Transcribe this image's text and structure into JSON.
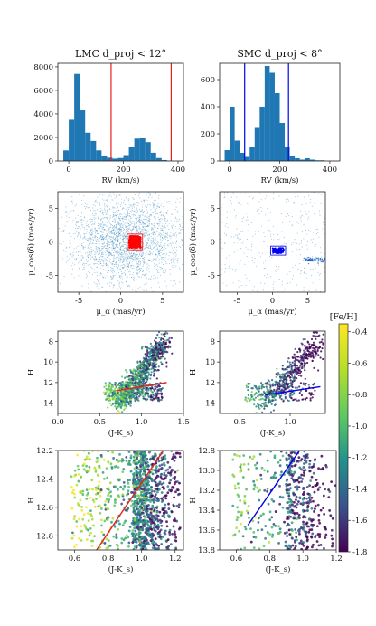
{
  "figure": {
    "colorbar": {
      "title": "[Fe/H]",
      "ticks": [
        "-0.4",
        "-0.6",
        "-0.8",
        "-1.0",
        "-1.2",
        "-1.4",
        "-1.6",
        "-1.8"
      ],
      "range": [
        -1.8,
        -0.35
      ],
      "colors": [
        "#440154",
        "#3b528b",
        "#21918c",
        "#5ec962",
        "#b5de2b",
        "#fde725"
      ]
    }
  },
  "chart_data": [
    {
      "id": "lmc-rv",
      "type": "bar",
      "title": "LMC d_proj < 12°",
      "xlabel": "RV (km/s)",
      "ylabel": "",
      "xlim": [
        -40,
        420
      ],
      "ylim": [
        0,
        8300
      ],
      "xticks": [
        0,
        200,
        400
      ],
      "yticks": [
        0,
        2000,
        4000,
        6000,
        8000
      ],
      "bin_width": 20,
      "bins": [
        -20,
        0,
        20,
        40,
        60,
        80,
        100,
        120,
        140,
        160,
        180,
        200,
        220,
        240,
        260,
        280,
        300,
        320,
        340,
        360
      ],
      "values": [
        900,
        3500,
        7400,
        4300,
        2400,
        1700,
        900,
        450,
        280,
        200,
        250,
        500,
        1200,
        1900,
        2000,
        1600,
        700,
        250,
        80,
        30
      ],
      "bar_color": "#1f77b4",
      "vlines": [
        155,
        375
      ],
      "vline_color": "#e8211d"
    },
    {
      "id": "smc-rv",
      "type": "bar",
      "title": "SMC d_proj < 8°",
      "xlabel": "RV (km/s)",
      "ylabel": "",
      "xlim": [
        -40,
        440
      ],
      "ylim": [
        0,
        720
      ],
      "xticks": [
        0,
        200,
        400
      ],
      "yticks": [
        0,
        200,
        400,
        600
      ],
      "bin_width": 20,
      "bins": [
        -20,
        0,
        20,
        40,
        60,
        80,
        100,
        120,
        140,
        160,
        180,
        200,
        220,
        240,
        260,
        280,
        300,
        320,
        340,
        360
      ],
      "values": [
        80,
        400,
        150,
        60,
        30,
        100,
        250,
        400,
        700,
        650,
        500,
        280,
        100,
        40,
        20,
        10,
        20,
        10,
        5,
        5
      ],
      "bar_color": "#1f77b4",
      "vlines": [
        60,
        235
      ],
      "vline_color": "#0000ee"
    },
    {
      "id": "lmc-pm",
      "type": "scatter",
      "xlabel": "μ_α (mas/yr)",
      "ylabel": "μ_cos(δ) (mas/yr)",
      "xlim": [
        -7.5,
        7.5
      ],
      "ylim": [
        -7.5,
        7.5
      ],
      "xticks": [
        -5,
        0,
        5
      ],
      "yticks": [
        -5,
        0,
        5
      ],
      "background_points": 2600,
      "background_color": "#1f77b4",
      "selection": {
        "x_range": [
          1.0,
          2.4
        ],
        "y_range": [
          -0.9,
          0.9
        ],
        "color": "#ff0000",
        "points": 420
      }
    },
    {
      "id": "smc-pm",
      "type": "scatter",
      "xlabel": "μ_α (mas/yr)",
      "ylabel": "μ_cos(δ) (mas/yr)",
      "xlim": [
        -7.5,
        7.5
      ],
      "ylim": [
        -7.5,
        7.5
      ],
      "xticks": [
        -5,
        0,
        5
      ],
      "yticks": [
        -5,
        0,
        5
      ],
      "background_points": 380,
      "background_color": "#1f77b4",
      "clumps": [
        {
          "x": 5.3,
          "y": -2.7,
          "points": 50
        },
        {
          "x": 6.8,
          "y": -2.6,
          "points": 25
        }
      ],
      "selection": {
        "x_range": [
          0.0,
          1.6
        ],
        "y_range": [
          -1.7,
          -0.9
        ],
        "color": "#0000ee",
        "points": 120
      }
    },
    {
      "id": "lmc-cmd",
      "type": "scatter",
      "xlabel": "(J-K_s)",
      "ylabel": "H",
      "xlim": [
        0.0,
        1.5
      ],
      "ylim": [
        15.0,
        7.0
      ],
      "xticks": [
        "0.0",
        "0.5",
        "1.0",
        "1.5"
      ],
      "yticks": [
        "8",
        "10",
        "12",
        "14"
      ],
      "fit_line": {
        "x": [
          0.7,
          1.3
        ],
        "y": [
          12.8,
          12.0
        ],
        "color": "#e8211d"
      },
      "color_by": "[Fe/H]",
      "points": 1300
    },
    {
      "id": "smc-cmd",
      "type": "scatter",
      "xlabel": "(J-K_s)",
      "ylabel": "H",
      "xlim": [
        0.3,
        1.35
      ],
      "ylim": [
        15.0,
        7.0
      ],
      "xticks": [
        "0.5",
        "1.0"
      ],
      "yticks": [
        "8",
        "10",
        "12",
        "14"
      ],
      "fit_line": {
        "x": [
          0.75,
          1.3
        ],
        "y": [
          13.2,
          12.4
        ],
        "color": "#0000ee"
      },
      "color_by": "[Fe/H]",
      "points": 650
    },
    {
      "id": "lmc-zoom",
      "type": "scatter",
      "xlabel": "(J-K_s)",
      "ylabel": "H",
      "xlim": [
        0.5,
        1.25
      ],
      "ylim": [
        12.9,
        12.2
      ],
      "xticks": [
        "0.6",
        "0.8",
        "1.0",
        "1.2"
      ],
      "yticks": [
        "12.2",
        "12.4",
        "12.6",
        "12.8"
      ],
      "fit_line": {
        "x": [
          0.72,
          1.13
        ],
        "y": [
          12.92,
          12.2
        ],
        "color": "#e8211d"
      },
      "color_by": "[Fe/H]",
      "points": 1100
    },
    {
      "id": "smc-zoom",
      "type": "scatter",
      "xlabel": "(J-K_s)",
      "ylabel": "H",
      "xlim": [
        0.5,
        1.2
      ],
      "ylim": [
        13.8,
        12.8
      ],
      "xticks": [
        "0.6",
        "0.8",
        "1.0",
        "1.2"
      ],
      "yticks": [
        "12.8",
        "13.0",
        "13.2",
        "13.4",
        "13.6",
        "13.8"
      ],
      "fit_line": {
        "x": [
          0.67,
          0.98
        ],
        "y": [
          13.55,
          12.8
        ],
        "color": "#0000ee"
      },
      "color_by": "[Fe/H]",
      "points": 500
    }
  ]
}
